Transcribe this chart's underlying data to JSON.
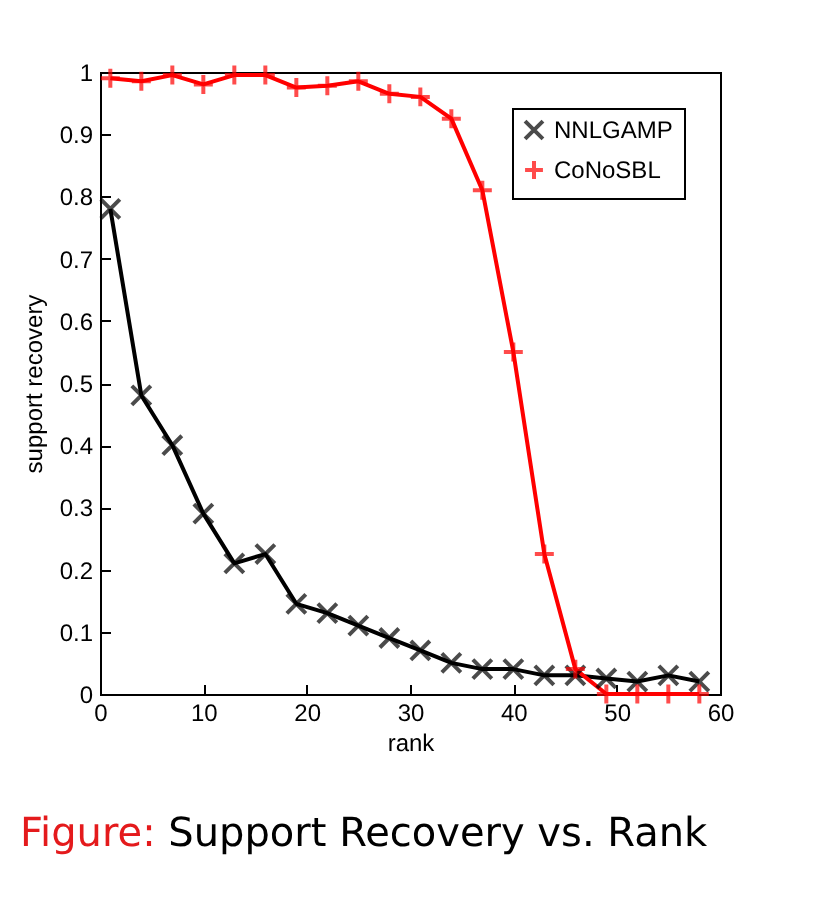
{
  "chart_data": {
    "type": "line",
    "xlabel": "rank",
    "ylabel": "support recovery",
    "annotations": [
      "Figure: Support Recovery vs. Rank"
    ],
    "x": [
      1,
      4,
      7,
      10,
      13,
      16,
      19,
      22,
      25,
      28,
      31,
      34,
      37,
      40,
      43,
      46,
      49,
      52,
      55,
      58
    ],
    "series": [
      {
        "name": "NNLGAMP",
        "color": "#000000",
        "marker": "x",
        "values": [
          0.78,
          0.48,
          0.4,
          0.29,
          0.21,
          0.225,
          0.145,
          0.13,
          0.11,
          0.09,
          0.07,
          0.05,
          0.04,
          0.04,
          0.03,
          0.03,
          0.025,
          0.02,
          0.03,
          0.02
        ]
      },
      {
        "name": "CoNoSBL",
        "color": "#ff0000",
        "marker": "cross",
        "values": [
          0.99,
          0.985,
          0.995,
          0.98,
          0.995,
          0.995,
          0.975,
          0.978,
          0.985,
          0.965,
          0.96,
          0.925,
          0.81,
          0.55,
          0.225,
          0.04,
          0,
          0,
          0,
          0
        ]
      }
    ],
    "xlim": [
      0,
      60
    ],
    "xticks": [
      0,
      10,
      20,
      30,
      40,
      50,
      60
    ],
    "ylim": [
      0,
      1
    ],
    "yticks": [
      0,
      0.1,
      0.2,
      0.3,
      0.4,
      0.5,
      0.6,
      0.7,
      0.8,
      0.9,
      1
    ],
    "grid": false,
    "legend": "top right",
    "line_style": "solid"
  }
}
